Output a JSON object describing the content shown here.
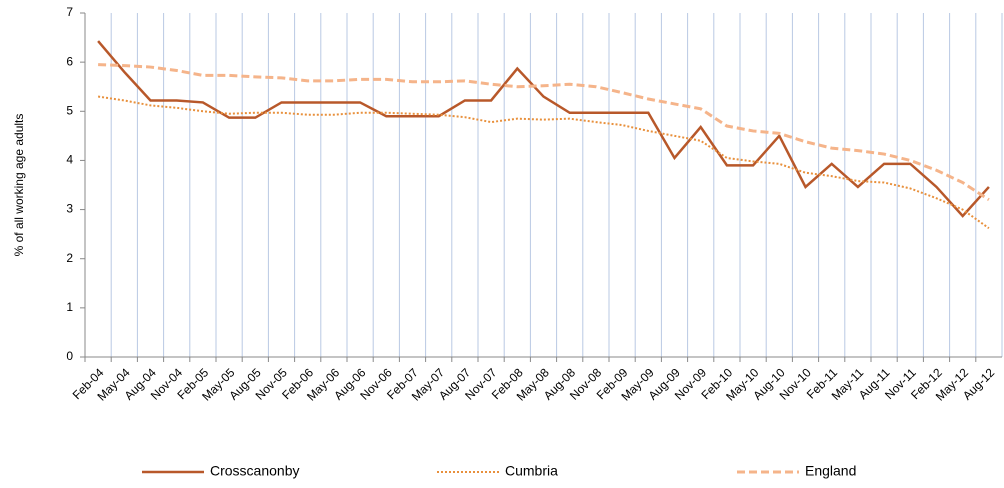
{
  "chart_data": {
    "type": "line",
    "y_label": "% of all working age adults",
    "categories": [
      "Feb-04",
      "May-04",
      "Aug-04",
      "Nov-04",
      "Feb-05",
      "May-05",
      "Aug-05",
      "Nov-05",
      "Feb-06",
      "May-06",
      "Aug-06",
      "Nov-06",
      "Feb-07",
      "May-07",
      "Aug-07",
      "Nov-07",
      "Feb-08",
      "May-08",
      "Aug-08",
      "Nov-08",
      "Feb-09",
      "May-09",
      "Aug-09",
      "Nov-09",
      "Feb-10",
      "May-10",
      "Aug-10",
      "Nov-10",
      "Feb-11",
      "May-11",
      "Aug-11",
      "Nov-11",
      "Feb-12",
      "May-12",
      "Aug-12"
    ],
    "series": [
      {
        "name": "Crosscanonby",
        "color": "#b8582a",
        "dash": "solid",
        "values": [
          6.43,
          5.8,
          5.22,
          5.22,
          5.18,
          4.87,
          4.87,
          5.18,
          5.18,
          5.18,
          5.18,
          4.9,
          4.9,
          4.9,
          5.22,
          5.22,
          5.87,
          5.3,
          4.97,
          4.97,
          4.97,
          4.97,
          4.05,
          4.68,
          3.9,
          3.9,
          4.5,
          3.46,
          3.93,
          3.46,
          3.93,
          3.93,
          3.46,
          2.87,
          3.46
        ]
      },
      {
        "name": "Cumbria",
        "color": "#e8903c",
        "dash": "dotted",
        "values": [
          5.3,
          5.22,
          5.12,
          5.07,
          5.0,
          4.95,
          4.97,
          4.97,
          4.93,
          4.93,
          4.97,
          4.97,
          4.95,
          4.93,
          4.88,
          4.78,
          4.85,
          4.83,
          4.85,
          4.78,
          4.72,
          4.6,
          4.5,
          4.4,
          4.05,
          3.98,
          3.93,
          3.75,
          3.68,
          3.58,
          3.55,
          3.43,
          3.23,
          3.0,
          2.62
        ]
      },
      {
        "name": "England",
        "color": "#f5b48a",
        "dash": "dashed",
        "values": [
          5.95,
          5.93,
          5.9,
          5.83,
          5.73,
          5.73,
          5.7,
          5.68,
          5.62,
          5.62,
          5.65,
          5.65,
          5.6,
          5.6,
          5.62,
          5.55,
          5.5,
          5.52,
          5.55,
          5.5,
          5.38,
          5.25,
          5.15,
          5.05,
          4.7,
          4.6,
          4.55,
          4.38,
          4.25,
          4.2,
          4.13,
          4.0,
          3.8,
          3.55,
          3.2
        ]
      }
    ],
    "ylim": [
      0,
      7
    ],
    "yticks": [
      0,
      1,
      2,
      3,
      4,
      5,
      6,
      7
    ],
    "grid": "vertical",
    "grid_color": "#b9c9e3",
    "legend": "bottom"
  }
}
